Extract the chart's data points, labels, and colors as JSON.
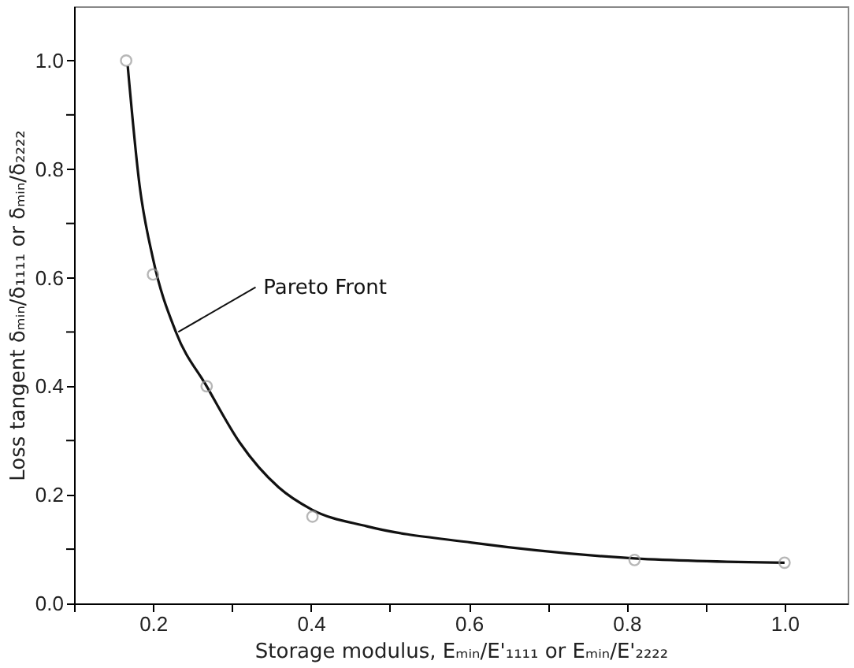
{
  "chart_data": {
    "type": "line",
    "xlabel": "Storage modulus, Eₘᵢₙ/E'₁₁₁₁ or Eₘᵢₙ/E'₂₂₂₂",
    "ylabel": "Loss tangent δₘᵢₙ/δ₁₁₁₁ or δₘᵢₙ/δ₂₂₂₂",
    "series": [
      {
        "color": "#111111",
        "marker": "none",
        "line_style": "solid",
        "x": [
          0.168,
          0.183,
          0.2,
          0.229,
          0.268,
          0.31,
          0.359,
          0.401,
          0.471,
          0.604,
          0.81,
          1.0
        ],
        "values": [
          0.99,
          0.77,
          0.635,
          0.5,
          0.4,
          0.296,
          0.214,
          0.173,
          0.142,
          0.112,
          0.083,
          0.075
        ]
      },
      {
        "type": "scatter",
        "color": "#999999",
        "marker": "circle",
        "x": [
          0.166,
          0.2,
          0.268,
          0.402,
          0.81,
          1.0
        ],
        "values": [
          1.0,
          0.606,
          0.4,
          0.16,
          0.08,
          0.075
        ]
      }
    ],
    "annotations": [
      {
        "text": "Pareto Front",
        "x": 0.232,
        "y": 0.5
      }
    ],
    "xlim": [
      0.1,
      1.08
    ],
    "ylim": [
      0,
      1.1
    ],
    "xticks": [
      {
        "value": 0.1,
        "label": null
      },
      0.2,
      {
        "value": 0.3,
        "label": null
      },
      0.4,
      {
        "value": 0.5,
        "label": null
      },
      0.6,
      {
        "value": 0.7,
        "label": null
      },
      0.8,
      {
        "value": 0.9,
        "label": null
      },
      {
        "value": 1,
        "label": "1.0"
      }
    ],
    "yticks": [
      {
        "value": 0,
        "label": "0.0"
      },
      {
        "value": 0.1,
        "label": null
      },
      0.2,
      {
        "value": 0.3,
        "label": null
      },
      0.4,
      {
        "value": 0.5,
        "label": null
      },
      0.6,
      {
        "value": 0.7,
        "label": null
      },
      0.8,
      {
        "value": 0.9,
        "label": null
      },
      {
        "value": 1,
        "label": "1.0"
      }
    ],
    "grid": false
  }
}
